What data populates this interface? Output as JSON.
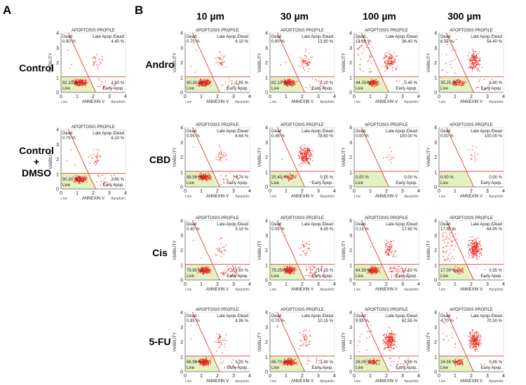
{
  "figure": {
    "panel_letters": [
      "A",
      "B"
    ],
    "column_headers": [
      "10 µm",
      "30 µm",
      "100 µm",
      "300 µm"
    ],
    "row_headers": [
      "Andro",
      "CBD",
      "Cis",
      "5-FU"
    ],
    "controls": [
      {
        "label_lines": [
          "Control"
        ]
      },
      {
        "label_lines": [
          "Control",
          "+",
          "DMSO"
        ]
      }
    ]
  },
  "colors": {
    "points": "#e8261c",
    "gate_lines": "#e0403a",
    "live_fill": "#e4f1c2",
    "axis": "#333333"
  },
  "chart_data": [
    {
      "id": "A-control",
      "type": "scatter",
      "title": "APOPTOSIS PROFILE",
      "xlabel": "ANNEXIN V",
      "ylabel": "VIABILITY",
      "x_left": "Live",
      "x_right": "Apoptotic",
      "xlim": [
        0,
        4
      ],
      "ylim": [
        0,
        4
      ],
      "quadrant_labels": {
        "dead": "Dead",
        "late": "Late Apop./Dead",
        "early": "Early Apop.",
        "live": "Live"
      },
      "percent": {
        "dead": "0.90 %",
        "late": "4.40 %",
        "early": "2.60 %",
        "live": "92.10 %"
      },
      "density": {
        "live": 190,
        "early": 18,
        "late": 24,
        "dead": 3
      }
    },
    {
      "id": "A-dmso",
      "type": "scatter",
      "title": "APOPTOSIS PROFILE",
      "xlabel": "ANNEXIN V",
      "ylabel": "VIABILITY",
      "x_left": "Live",
      "x_right": "Apoptotic",
      "xlim": [
        0,
        4
      ],
      "ylim": [
        0,
        4
      ],
      "quadrant_labels": {
        "dead": "Dead",
        "late": "Late Apop./Dead",
        "early": "Early Apop.",
        "live": "Live"
      },
      "percent": {
        "dead": "0.75 %",
        "late": "6.10 %",
        "early": "2.85 %",
        "live": "90.30 %"
      },
      "density": {
        "live": 190,
        "early": 18,
        "late": 30,
        "dead": 3
      }
    },
    {
      "id": "andro-10",
      "type": "scatter",
      "title": "APOPTOSIS PROFILE",
      "xlabel": "ANNEXIN V",
      "ylabel": "VIABILITY",
      "x_left": "Live",
      "x_right": "Apoptotic",
      "xlim": [
        0,
        4
      ],
      "ylim": [
        0,
        4
      ],
      "quadrant_labels": {
        "dead": "Dead",
        "late": "Late Apop./Dead",
        "early": "Early Apop.",
        "live": "Live"
      },
      "percent": {
        "dead": "0.75 %",
        "late": "6.10 %",
        "early": "2.85 %",
        "live": "90.30 %"
      },
      "density": {
        "live": 190,
        "early": 18,
        "late": 30,
        "dead": 3
      }
    },
    {
      "id": "andro-30",
      "type": "scatter",
      "title": "APOPTOSIS PROFILE",
      "xlabel": "ANNEXIN V",
      "ylabel": "VIABILITY",
      "x_left": "Live",
      "x_right": "Apoptotic",
      "xlim": [
        0,
        4
      ],
      "ylim": [
        0,
        4
      ],
      "quadrant_labels": {
        "dead": "Dead",
        "late": "Late Apop./Dead",
        "early": "Early Apop.",
        "live": "Live"
      },
      "percent": {
        "dead": "0.80 %",
        "late": "13.90 %",
        "early": "3.20 %",
        "live": "82.10 %"
      },
      "density": {
        "live": 170,
        "early": 18,
        "late": 55,
        "dead": 3
      }
    },
    {
      "id": "andro-100",
      "type": "scatter",
      "title": "APOPTOSIS PROFILE",
      "xlabel": "ANNEXIN V",
      "ylabel": "VIABILITY",
      "x_left": "Live",
      "x_right": "Apoptotic",
      "xlim": [
        0,
        4
      ],
      "ylim": [
        0,
        4
      ],
      "quadrant_labels": {
        "dead": "Dead",
        "late": "Late Apop./Dead",
        "early": "Early Apop.",
        "live": "Live"
      },
      "percent": {
        "dead": "18.90 %",
        "late": "36.40 %",
        "early": "0.45 %",
        "live": "44.25 %"
      },
      "density": {
        "live": 110,
        "early": 4,
        "late": 120,
        "dead": 40
      }
    },
    {
      "id": "andro-300",
      "type": "scatter",
      "title": "APOPTOSIS PROFILE",
      "xlabel": "ANNEXIN V",
      "ylabel": "VIABILITY",
      "x_left": "Live",
      "x_right": "Apoptotic",
      "xlim": [
        0,
        4
      ],
      "ylim": [
        0,
        4
      ],
      "quadrant_labels": {
        "dead": "Dead",
        "late": "Late Apop./Dead",
        "early": "Early Apop.",
        "live": "Live"
      },
      "percent": {
        "dead": "6.55 %",
        "late": "54.40 %",
        "early": "3.80 %",
        "live": "35.25 %"
      },
      "density": {
        "live": 90,
        "early": 14,
        "late": 150,
        "dead": 18
      }
    },
    {
      "id": "cbd-10",
      "type": "scatter",
      "title": "APOPTOSIS PROFILE",
      "xlabel": "ANNEXIN V",
      "ylabel": "VIABILITY",
      "x_left": "Live",
      "x_right": "Apoptotic",
      "xlim": [
        0,
        4
      ],
      "ylim": [
        0,
        4
      ],
      "quadrant_labels": {
        "dead": "Dead",
        "late": "Late Apop./Dead",
        "early": "Early Apop.",
        "live": "Live"
      },
      "percent": {
        "dead": "0.05 %",
        "late": "6.64 %",
        "early": "4.74 %",
        "live": "88.56 %"
      },
      "density": {
        "live": 185,
        "early": 22,
        "late": 30,
        "dead": 1
      }
    },
    {
      "id": "cbd-30",
      "type": "scatter",
      "title": "APOPTOSIS PROFILE",
      "xlabel": "ANNEXIN V",
      "ylabel": "VIABILITY",
      "x_left": "Live",
      "x_right": "Apoptotic",
      "xlim": [
        0,
        4
      ],
      "ylim": [
        0,
        4
      ],
      "quadrant_labels": {
        "dead": "Dead",
        "late": "Late Apop./Dead",
        "early": "Early Apop.",
        "live": "Live"
      },
      "percent": {
        "dead": "0.45 %",
        "late": "78.60 %",
        "early": "0.55 %",
        "live": "20.40 %"
      },
      "density": {
        "live": 50,
        "early": 3,
        "late": 200,
        "dead": 2
      }
    },
    {
      "id": "cbd-100",
      "type": "scatter",
      "title": "APOPTOSIS PROFILE",
      "xlabel": "ANNEXIN V",
      "ylabel": "VIABILITY",
      "x_left": "Live",
      "x_right": "Apoptotic",
      "xlim": [
        0,
        4
      ],
      "ylim": [
        0,
        4
      ],
      "quadrant_labels": {
        "dead": "Dead",
        "late": "Late Apop./Dead",
        "early": "Early Apop.",
        "live": "Live"
      },
      "percent": {
        "dead": "0.00 %",
        "late": "100.00 %",
        "early": "0.00 %",
        "live": "0.00 %"
      },
      "density": {
        "live": 0,
        "early": 0,
        "late": 12,
        "dead": 0
      }
    },
    {
      "id": "cbd-300",
      "type": "scatter",
      "title": "APOPTOSIS PROFILE",
      "xlabel": "ANNEXIN V",
      "ylabel": "VIABILITY",
      "x_left": "Live",
      "x_right": "Apoptotic",
      "xlim": [
        0,
        4
      ],
      "ylim": [
        0,
        4
      ],
      "quadrant_labels": {
        "dead": "Dead",
        "late": "Late Apop./Dead",
        "early": "Early Apop.",
        "live": "Live"
      },
      "percent": {
        "dead": "0.00 %",
        "late": "100.00 %",
        "early": "0.00 %",
        "live": "0.00 %"
      },
      "density": {
        "live": 0,
        "early": 0,
        "late": 14,
        "dead": 0
      }
    },
    {
      "id": "cis-10",
      "type": "scatter",
      "title": "APOPTOSIS PROFILE",
      "xlabel": "ANNEXIN V",
      "ylabel": "VIABILITY",
      "x_left": "Live",
      "x_right": "Apoptotic",
      "xlim": [
        0,
        4
      ],
      "ylim": [
        0,
        4
      ],
      "quadrant_labels": {
        "dead": "Dead",
        "late": "Late Apop./Dead",
        "early": "Early Apop.",
        "live": "Live"
      },
      "percent": {
        "dead": "0.40 %",
        "late": "5.10 %",
        "early": "14.60 %",
        "live": "79.90 %"
      },
      "density": {
        "live": 170,
        "early": 50,
        "late": 24,
        "dead": 2
      }
    },
    {
      "id": "cis-30",
      "type": "scatter",
      "title": "APOPTOSIS PROFILE",
      "xlabel": "ANNEXIN V",
      "ylabel": "VIABILITY",
      "x_left": "Live",
      "x_right": "Apoptotic",
      "xlim": [
        0,
        4
      ],
      "ylim": [
        0,
        4
      ],
      "quadrant_labels": {
        "dead": "Dead",
        "late": "Late Apop./Dead",
        "early": "Early Apop.",
        "live": "Live"
      },
      "percent": {
        "dead": "0.05 %",
        "late": "6.45 %",
        "early": "14.25 %",
        "live": "79.25 %"
      },
      "density": {
        "live": 170,
        "early": 50,
        "late": 28,
        "dead": 1
      }
    },
    {
      "id": "cis-100",
      "type": "scatter",
      "title": "APOPTOSIS PROFILE",
      "xlabel": "ANNEXIN V",
      "ylabel": "VIABILITY",
      "x_left": "Live",
      "x_right": "Apoptotic",
      "xlim": [
        0,
        4
      ],
      "ylim": [
        0,
        4
      ],
      "quadrant_labels": {
        "dead": "Dead",
        "late": "Late Apop./Dead",
        "early": "Early Apop.",
        "live": "Live"
      },
      "percent": {
        "dead": "0.15 %",
        "late": "17.80 %",
        "early": "17.50 %",
        "live": "64.55 %"
      },
      "density": {
        "live": 150,
        "early": 55,
        "late": 65,
        "dead": 1
      }
    },
    {
      "id": "cis-300",
      "type": "scatter",
      "title": "APOPTOSIS PROFILE",
      "xlabel": "ANNEXIN V",
      "ylabel": "VIABILITY",
      "x_left": "Live",
      "x_right": "Apoptotic",
      "xlim": [
        0,
        4
      ],
      "ylim": [
        0,
        4
      ],
      "quadrant_labels": {
        "dead": "Dead",
        "late": "Late Apop./Dead",
        "early": "Early Apop.",
        "live": "Live"
      },
      "percent": {
        "dead": "17.50 %",
        "late": "64.95 %",
        "early": "0.55 %",
        "live": "17.00 %"
      },
      "density": {
        "live": 45,
        "early": 3,
        "late": 210,
        "dead": 60
      }
    },
    {
      "id": "5fu-10",
      "type": "scatter",
      "title": "APOPTOSIS PROFILE",
      "xlabel": "ANNEXIN V",
      "ylabel": "VIABILITY",
      "x_left": "Live",
      "x_right": "Apoptotic",
      "xlim": [
        0,
        4
      ],
      "ylim": [
        0,
        4
      ],
      "quadrant_labels": {
        "dead": "Dead",
        "late": "Late Apop./Dead",
        "early": "Early Apop.",
        "live": "Live"
      },
      "percent": {
        "dead": "0.85 %",
        "late": "8.95 %",
        "early": "3.25 %",
        "live": "86.95 %"
      },
      "density": {
        "live": 185,
        "early": 18,
        "late": 35,
        "dead": 3
      }
    },
    {
      "id": "5fu-30",
      "type": "scatter",
      "title": "APOPTOSIS PROFILE",
      "xlabel": "ANNEXIN V",
      "ylabel": "VIABILITY",
      "x_left": "Live",
      "x_right": "Apoptotic",
      "xlim": [
        0,
        4
      ],
      "ylim": [
        0,
        4
      ],
      "quadrant_labels": {
        "dead": "Dead",
        "late": "Late Apop./Dead",
        "early": "Early Apop.",
        "live": "Live"
      },
      "percent": {
        "dead": "0.75 %",
        "late": "10.15 %",
        "early": "2.40 %",
        "live": "86.70 %"
      },
      "density": {
        "live": 185,
        "early": 14,
        "late": 40,
        "dead": 3
      }
    },
    {
      "id": "5fu-100",
      "type": "scatter",
      "title": "APOPTOSIS PROFILE",
      "xlabel": "ANNEXIN V",
      "ylabel": "VIABILITY",
      "x_left": "Live",
      "x_right": "Apoptotic",
      "xlim": [
        0,
        4
      ],
      "ylim": [
        0,
        4
      ],
      "quadrant_labels": {
        "dead": "Dead",
        "late": "Late Apop./Dead",
        "early": "Early Apop.",
        "live": "Live"
      },
      "percent": {
        "dead": "5.55 %",
        "late": "62.55 %",
        "early": "5.85 %",
        "live": "26.05 %"
      },
      "density": {
        "live": 70,
        "early": 20,
        "late": 190,
        "dead": 18
      }
    },
    {
      "id": "5fu-300",
      "type": "scatter",
      "title": "APOPTOSIS PROFILE",
      "xlabel": "ANNEXIN V",
      "ylabel": "VIABILITY",
      "x_left": "Live",
      "x_right": "Apoptotic",
      "xlim": [
        0,
        4
      ],
      "ylim": [
        0,
        4
      ],
      "quadrant_labels": {
        "dead": "Dead",
        "late": "Late Apop./Dead",
        "early": "Early Apop.",
        "live": "Live"
      },
      "percent": {
        "dead": "4.70 %",
        "late": "70.30 %",
        "early": "0.45 %",
        "live": "24.55 %"
      },
      "density": {
        "live": 65,
        "early": 3,
        "late": 200,
        "dead": 15
      }
    }
  ]
}
